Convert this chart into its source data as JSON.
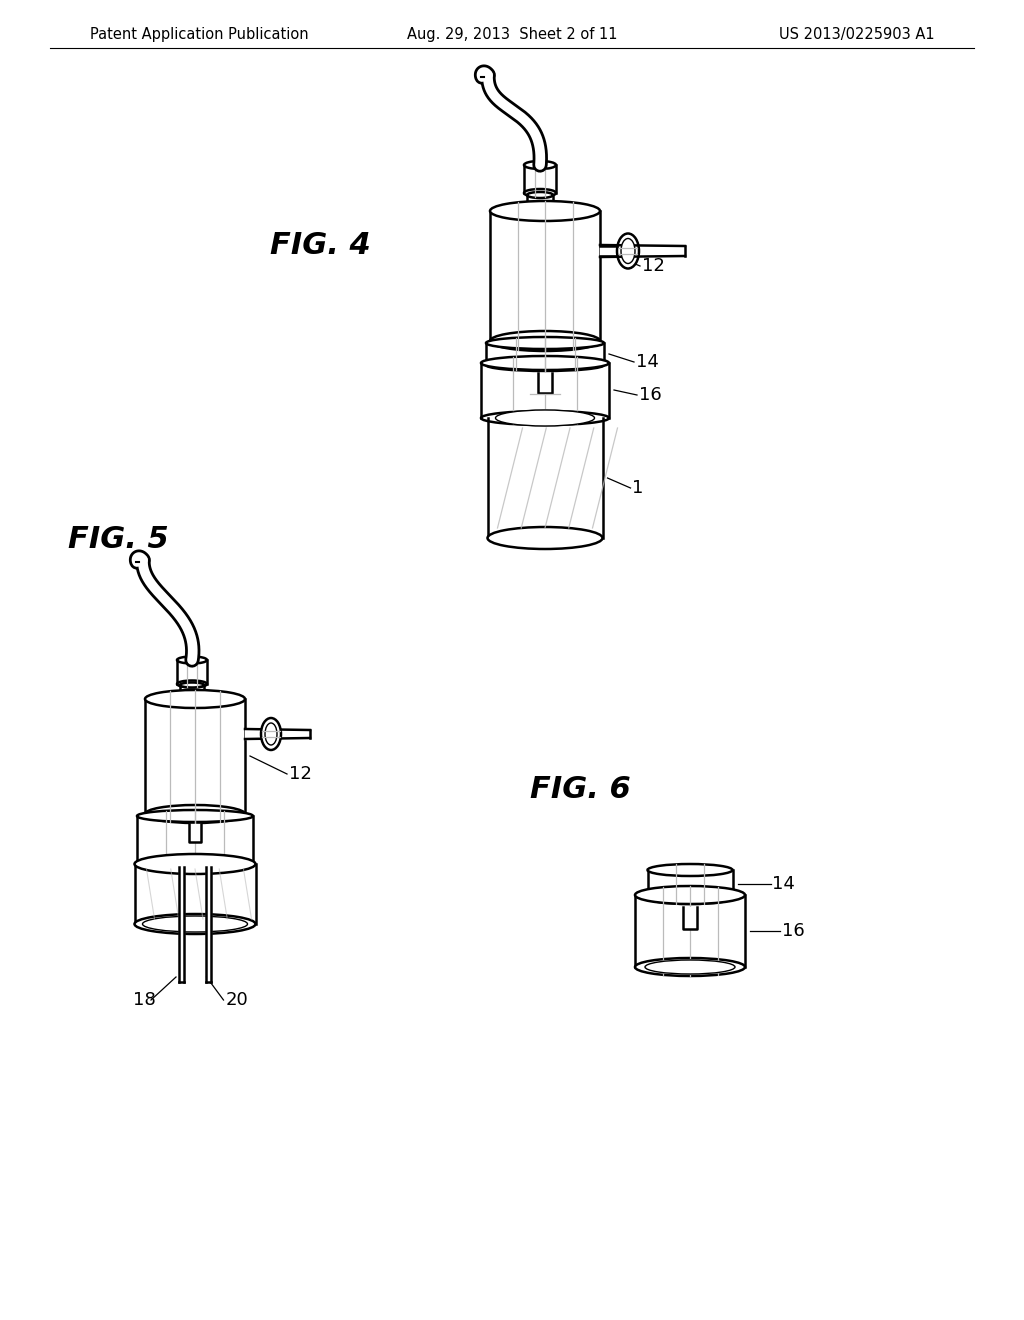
{
  "background_color": "#ffffff",
  "header_left": "Patent Application Publication",
  "header_center": "Aug. 29, 2013  Sheet 2 of 11",
  "header_right": "US 2013/0225903 A1",
  "header_fontsize": 10.5,
  "fig4_label": "FIG. 4",
  "fig5_label": "FIG. 5",
  "fig6_label": "FIG. 6",
  "label_fontsize": 22,
  "ref_fontsize": 13,
  "line_color": "#000000",
  "line_width": 1.8,
  "shade_color": "#bbbbbb",
  "light_shade": "#dddddd"
}
